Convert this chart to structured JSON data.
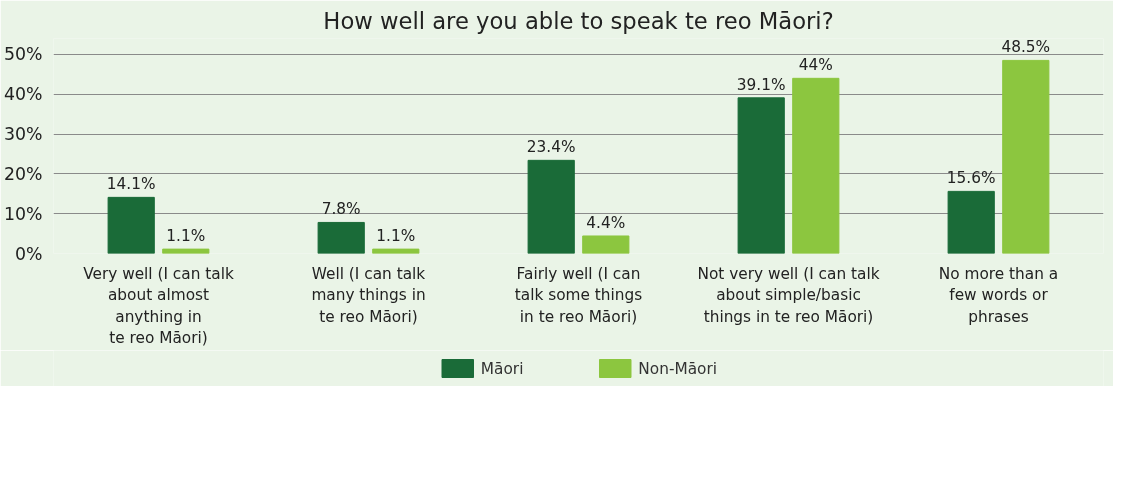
{
  "chart_data": {
    "type": "bar",
    "title": "How well are you able to speak te reo Māori?",
    "categories": [
      "Very well (I can talk\nabout almost\nanything in\nte reo Māori)",
      "Well (I can talk\nmany things in\nte reo Māori)",
      "Fairly well (I can\ntalk some things\nin te reo Māori)",
      "Not very well (I can talk\nabout simple/basic\nthings in te reo Māori)",
      "No more than a\nfew words or\nphrases"
    ],
    "series": [
      {
        "name": "Māori",
        "color": "#1a6b38",
        "values": [
          14.1,
          7.8,
          23.4,
          39.1,
          15.6
        ],
        "value_labels": [
          "14.1%",
          "7.8%",
          "23.4%",
          "39.1%",
          "15.6%"
        ]
      },
      {
        "name": "Non-Māori",
        "color": "#8cc63f",
        "values": [
          1.1,
          1.1,
          4.4,
          44,
          48.5
        ],
        "value_labels": [
          "1.1%",
          "1.1%",
          "4.4%",
          "44%",
          "48.5%"
        ]
      }
    ],
    "ylim": [
      0,
      54
    ],
    "yticks": [
      {
        "value": 0,
        "label": "0%"
      },
      {
        "value": 10,
        "label": "10%"
      },
      {
        "value": 20,
        "label": "20%"
      },
      {
        "value": 30,
        "label": "30%"
      },
      {
        "value": 40,
        "label": "40%"
      },
      {
        "value": 50,
        "label": "50%"
      }
    ],
    "grid": "y",
    "legend": "bottom"
  }
}
